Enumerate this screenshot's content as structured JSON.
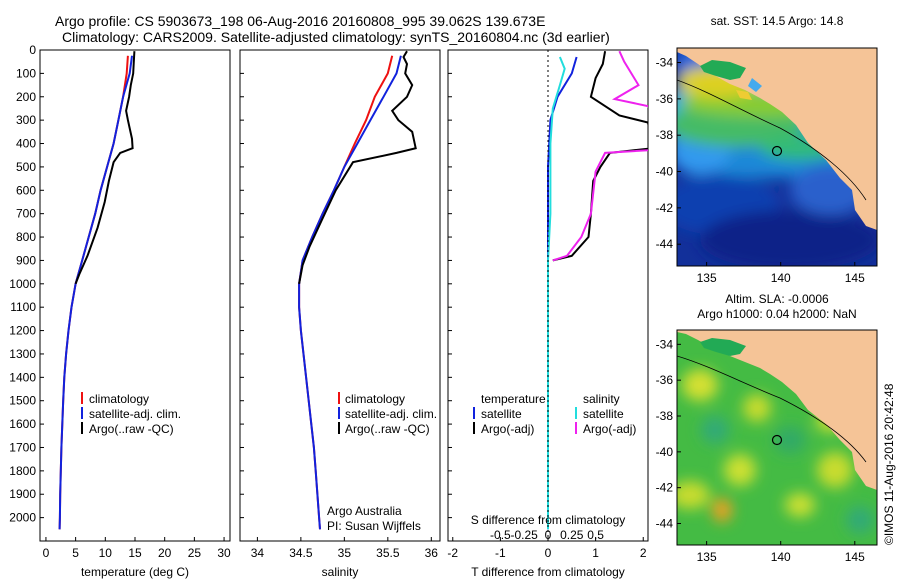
{
  "header": {
    "title_line1": "Argo profile: CS 5903673_198 06-Aug-2016 20160808_995 39.062S 139.673E",
    "title_line2": "Climatology: CARS2009. Satellite-adjusted climatology: synTS_20160804.nc (3d earlier)"
  },
  "colors": {
    "climatology": "#ee1111",
    "satellite": "#1122dd",
    "argo": "#000000",
    "salinity_satellite": "#22dddd",
    "salinity_argo": "#ee22ee"
  },
  "chart_data": [
    {
      "type": "line",
      "xlabel": "temperature (deg C)",
      "ylabel": "",
      "xlim": [
        -1,
        31
      ],
      "ylim": [
        2100,
        0
      ],
      "x_ticks": [
        "0",
        "5",
        "10",
        "15",
        "20",
        "25",
        "30"
      ],
      "y_ticks": [
        "0",
        "100",
        "200",
        "300",
        "400",
        "500",
        "600",
        "700",
        "800",
        "900",
        "1000",
        "1100",
        "1200",
        "1300",
        "1400",
        "1500",
        "1600",
        "1700",
        "1800",
        "1900",
        "2000"
      ],
      "legend": [
        "climatology",
        "satellite-adj. clim.",
        "Argo(..raw -QC)"
      ],
      "series": [
        {
          "name": "climatology",
          "points": [
            [
              13.8,
              25
            ],
            [
              13.6,
              100
            ],
            [
              13.0,
              200
            ],
            [
              12.2,
              300
            ],
            [
              11.4,
              400
            ],
            [
              10.3,
              500
            ],
            [
              9.2,
              600
            ],
            [
              8.3,
              700
            ],
            [
              7.2,
              800
            ],
            [
              6.1,
              900
            ],
            [
              5.0,
              1000
            ],
            [
              4.3,
              1100
            ],
            [
              3.8,
              1200
            ],
            [
              3.4,
              1300
            ],
            [
              3.1,
              1400
            ],
            [
              2.9,
              1500
            ],
            [
              2.75,
              1600
            ],
            [
              2.6,
              1700
            ],
            [
              2.5,
              1800
            ],
            [
              2.4,
              1900
            ],
            [
              2.35,
              2000
            ],
            [
              2.3,
              2050
            ]
          ]
        },
        {
          "name": "satellite-adj. clim.",
          "points": [
            [
              14.5,
              25
            ],
            [
              14.1,
              100
            ],
            [
              13.0,
              200
            ],
            [
              12.2,
              300
            ],
            [
              11.4,
              400
            ],
            [
              10.3,
              500
            ],
            [
              9.2,
              600
            ],
            [
              8.3,
              700
            ],
            [
              7.2,
              800
            ],
            [
              6.1,
              900
            ],
            [
              5.0,
              1000
            ],
            [
              4.3,
              1100
            ],
            [
              3.8,
              1200
            ],
            [
              3.4,
              1300
            ],
            [
              3.1,
              1400
            ],
            [
              2.9,
              1500
            ],
            [
              2.75,
              1600
            ],
            [
              2.6,
              1700
            ],
            [
              2.5,
              1800
            ],
            [
              2.4,
              1900
            ],
            [
              2.35,
              2000
            ],
            [
              2.3,
              2050
            ]
          ]
        },
        {
          "name": "Argo(..raw -QC)",
          "points": [
            [
              14.9,
              5
            ],
            [
              14.8,
              50
            ],
            [
              14.7,
              100
            ],
            [
              14.3,
              150
            ],
            [
              14.0,
              200
            ],
            [
              13.5,
              260
            ],
            [
              13.8,
              300
            ],
            [
              14.5,
              380
            ],
            [
              14.6,
              420
            ],
            [
              12.5,
              440
            ],
            [
              11.4,
              480
            ],
            [
              10.6,
              560
            ],
            [
              9.9,
              650
            ],
            [
              8.7,
              760
            ],
            [
              7.0,
              880
            ],
            [
              5.6,
              960
            ],
            [
              5.0,
              1000
            ]
          ]
        }
      ]
    },
    {
      "type": "line",
      "xlabel": "salinity",
      "xlim": [
        33.8,
        36.1
      ],
      "ylim": [
        2100,
        0
      ],
      "x_ticks": [
        "34",
        "34.5",
        "35",
        "35.5",
        "36"
      ],
      "legend": [
        "climatology",
        "satellite-adj. clim.",
        "Argo(..raw -QC)"
      ],
      "annotation": [
        "Argo Australia",
        "PI: Susan Wijffels"
      ],
      "series": [
        {
          "name": "climatology",
          "points": [
            [
              35.55,
              25
            ],
            [
              35.5,
              100
            ],
            [
              35.35,
              200
            ],
            [
              35.25,
              300
            ],
            [
              35.12,
              400
            ],
            [
              35.0,
              500
            ],
            [
              34.88,
              600
            ],
            [
              34.75,
              700
            ],
            [
              34.63,
              800
            ],
            [
              34.52,
              900
            ],
            [
              34.48,
              1000
            ],
            [
              34.48,
              1100
            ],
            [
              34.5,
              1200
            ],
            [
              34.53,
              1300
            ],
            [
              34.56,
              1400
            ],
            [
              34.59,
              1500
            ],
            [
              34.62,
              1600
            ],
            [
              34.65,
              1700
            ],
            [
              34.67,
              1800
            ],
            [
              34.69,
              1900
            ],
            [
              34.71,
              2000
            ],
            [
              34.72,
              2050
            ]
          ]
        },
        {
          "name": "satellite-adj. clim.",
          "points": [
            [
              35.65,
              25
            ],
            [
              35.6,
              100
            ],
            [
              35.45,
              200
            ],
            [
              35.3,
              300
            ],
            [
              35.15,
              400
            ],
            [
              35.0,
              500
            ],
            [
              34.88,
              600
            ],
            [
              34.75,
              700
            ],
            [
              34.63,
              800
            ],
            [
              34.52,
              900
            ],
            [
              34.48,
              1000
            ],
            [
              34.48,
              1100
            ],
            [
              34.5,
              1200
            ],
            [
              34.53,
              1300
            ],
            [
              34.56,
              1400
            ],
            [
              34.59,
              1500
            ],
            [
              34.62,
              1600
            ],
            [
              34.65,
              1700
            ],
            [
              34.67,
              1800
            ],
            [
              34.69,
              1900
            ],
            [
              34.71,
              2000
            ],
            [
              34.72,
              2050
            ]
          ]
        },
        {
          "name": "Argo(..raw -QC)",
          "points": [
            [
              35.72,
              5
            ],
            [
              35.68,
              30
            ],
            [
              35.72,
              60
            ],
            [
              35.7,
              100
            ],
            [
              35.78,
              150
            ],
            [
              35.72,
              200
            ],
            [
              35.55,
              260
            ],
            [
              35.62,
              300
            ],
            [
              35.78,
              350
            ],
            [
              35.82,
              420
            ],
            [
              35.6,
              440
            ],
            [
              35.1,
              480
            ],
            [
              34.9,
              600
            ],
            [
              34.75,
              720
            ],
            [
              34.6,
              840
            ],
            [
              34.52,
              920
            ],
            [
              34.48,
              1000
            ]
          ]
        }
      ]
    },
    {
      "type": "line",
      "xlabel": "T difference from climatology",
      "xlabel_top": "S difference from climatology",
      "xlim": [
        -2.1,
        2.1
      ],
      "ylim": [
        2100,
        0
      ],
      "x_ticks": [
        "-2",
        "-1",
        "0",
        "1",
        "2"
      ],
      "x_ticks_top": [
        "-0.5",
        "-0.25",
        "0",
        "0.25",
        "0.5"
      ],
      "legend_headers": [
        "temperature",
        "salinity"
      ],
      "legend": [
        "satellite",
        "Argo(-adj)",
        "satellite",
        "Argo(-adj)"
      ],
      "series": [
        {
          "name": "satellite",
          "points": [
            [
              0.6,
              30
            ],
            [
              0.5,
              100
            ],
            [
              0.2,
              200
            ],
            [
              0.05,
              300
            ],
            [
              0.0,
              500
            ],
            [
              0.0,
              2050
            ]
          ]
        },
        {
          "name": "Argo(-adj)",
          "points": [
            [
              1.2,
              5
            ],
            [
              1.15,
              60
            ],
            [
              1.0,
              120
            ],
            [
              0.9,
              200
            ],
            [
              1.5,
              280
            ],
            [
              2.1,
              310
            ],
            [
              2.2,
              420
            ],
            [
              1.3,
              440
            ],
            [
              1.1,
              500
            ],
            [
              0.95,
              560
            ],
            [
              0.9,
              700
            ],
            [
              0.85,
              800
            ],
            [
              0.5,
              880
            ],
            [
              0.1,
              900
            ]
          ]
        },
        {
          "name": "satellite",
          "points": [
            [
              0.25,
              30
            ],
            [
              0.35,
              80
            ],
            [
              0.25,
              150
            ],
            [
              0.1,
              250
            ],
            [
              0.05,
              400
            ],
            [
              0.05,
              700
            ],
            [
              0.0,
              900
            ],
            [
              0.0,
              2050
            ]
          ]
        },
        {
          "name": "Argo(-adj)",
          "points": [
            [
              1.5,
              5
            ],
            [
              1.6,
              50
            ],
            [
              1.9,
              150
            ],
            [
              1.4,
              210
            ],
            [
              2.1,
              240
            ],
            [
              2.3,
              300
            ],
            [
              2.8,
              310
            ],
            [
              2.8,
              420
            ],
            [
              1.2,
              440
            ],
            [
              1.0,
              520
            ],
            [
              0.9,
              700
            ],
            [
              0.7,
              800
            ],
            [
              0.4,
              880
            ],
            [
              0.1,
              900
            ]
          ]
        }
      ]
    },
    {
      "type": "heatmap",
      "title": "sat. SST: 14.5  Argo: 14.8",
      "xlim": [
        133,
        146.5
      ],
      "ylim": [
        -45.2,
        -33.2
      ],
      "x_ticks": [
        "135",
        "140",
        "145"
      ],
      "y_ticks": [
        "-34",
        "-36",
        "-38",
        "-40",
        "-42",
        "-44"
      ],
      "marker": [
        139.673,
        -39.062
      ]
    },
    {
      "type": "heatmap",
      "title_line1": "Altim. SLA: -0.0006",
      "title_line2": "Argo h1000: 0.04 h2000: NaN",
      "xlim": [
        133,
        146.5
      ],
      "ylim": [
        -45.2,
        -33.2
      ],
      "x_ticks": [
        "135",
        "140",
        "145"
      ],
      "y_ticks": [
        "-34",
        "-36",
        "-38",
        "-40",
        "-42",
        "-44"
      ],
      "marker": [
        139.673,
        -39.062
      ]
    }
  ],
  "footer": {
    "stamp": "©IMOS 11-Aug-2016 20:42:48"
  }
}
